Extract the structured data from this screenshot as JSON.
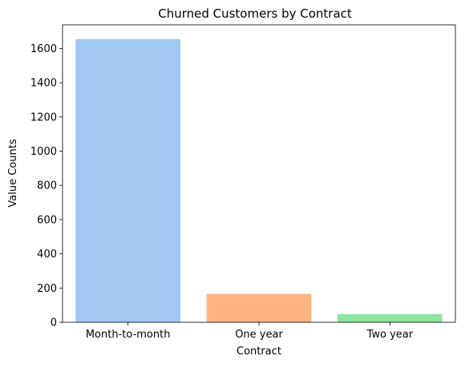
{
  "chart_data": {
    "type": "bar",
    "title": "Churned Customers by Contract",
    "xlabel": "Contract",
    "ylabel": "Value Counts",
    "categories": [
      "Month-to-month",
      "One year",
      "Two year"
    ],
    "values": [
      1655,
      166,
      48
    ],
    "colors": [
      "#a1c9f4",
      "#ffb482",
      "#8de5a1"
    ],
    "yticks": [
      0,
      200,
      400,
      600,
      800,
      1000,
      1200,
      1400,
      1600
    ],
    "ylim": [
      0,
      1738
    ],
    "grid": false,
    "legend": "none"
  }
}
